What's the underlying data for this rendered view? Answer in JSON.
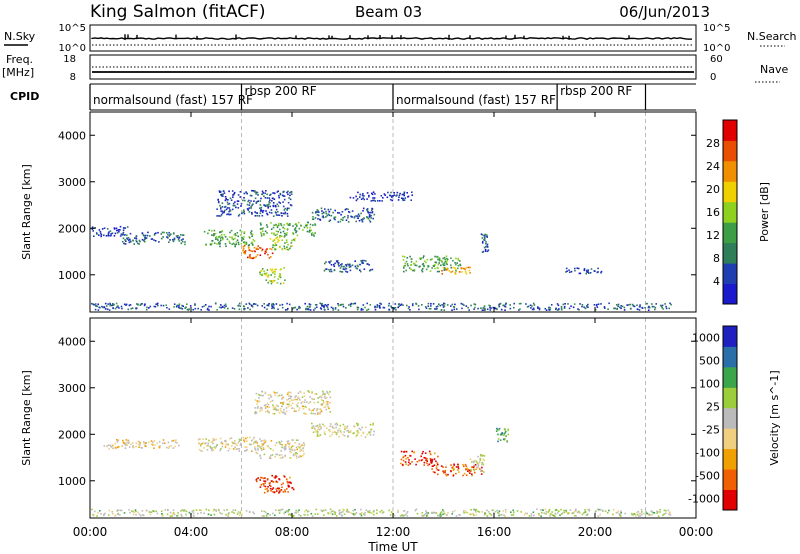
{
  "header": {
    "station": "King Salmon (fitACF)",
    "beam": "Beam 03",
    "date": "06/Jun/2013"
  },
  "colors": {
    "power_scale": [
      "#1a1acc",
      "#1f3fb0",
      "#2f7e5a",
      "#3d9e45",
      "#8fd11f",
      "#f0d000",
      "#f09000",
      "#e85000",
      "#e00000"
    ],
    "velocity_scale": [
      "#e00000",
      "#f06000",
      "#f0a000",
      "#f0d080",
      "#bbbbbb",
      "#9ccd3a",
      "#3aa54a",
      "#2b6fa8",
      "#2020c0"
    ],
    "ground_scatter": "#bbbbbb",
    "grid": "#bbbbbb"
  },
  "chart_data": [
    {
      "type": "line",
      "panel": "N.Sky / N.Search",
      "left_label": "N.Sky",
      "right_label": "N.Search",
      "left_ticks": [
        "10^5",
        "10^0"
      ],
      "right_ticks": [
        "10^5",
        "10^0"
      ]
    },
    {
      "type": "line",
      "panel": "Freq. / Nave",
      "left_label": "Freq.",
      "left_unit": "[MHz]",
      "right_label": "Nave",
      "left_ticks": [
        "18",
        "8"
      ],
      "right_ticks": [
        "60",
        "0"
      ]
    },
    {
      "type": "table",
      "panel": "CPID",
      "label": "CPID",
      "segments": [
        {
          "start_h": 0,
          "end_h": 6,
          "label": "normalsound (fast) 157 RF"
        },
        {
          "start_h": 6,
          "end_h": 12,
          "label": "rbsp 200 RF"
        },
        {
          "start_h": 12,
          "end_h": 18.5,
          "label": "normalsound (fast) 157 RF"
        },
        {
          "start_h": 18.5,
          "end_h": 22,
          "label": "rbsp 200 RF"
        }
      ]
    },
    {
      "type": "heatmap",
      "panel": "Power",
      "ylabel": "Slant Range [km]",
      "yticks": [
        "1000",
        "2000",
        "3000",
        "4000"
      ],
      "ylim": [
        200,
        4500
      ],
      "xlim": [
        0,
        24
      ],
      "colorbar_label": "Power [dB]",
      "colorbar_ticks": [
        "4",
        "8",
        "12",
        "16",
        "20",
        "24",
        "28"
      ],
      "scatter_regions": [
        {
          "x": 0.5,
          "y": 1950,
          "w": 2.0,
          "h": 220,
          "level": 0.15
        },
        {
          "x": 2.5,
          "y": 1800,
          "w": 2.5,
          "h": 260,
          "level": 0.2
        },
        {
          "x": 5.5,
          "y": 1800,
          "w": 2.0,
          "h": 350,
          "level": 0.4
        },
        {
          "x": 6.6,
          "y": 1500,
          "w": 1.2,
          "h": 280,
          "level": 0.8
        },
        {
          "x": 7.6,
          "y": 1700,
          "w": 1.0,
          "h": 300,
          "level": 0.5
        },
        {
          "x": 6.5,
          "y": 2550,
          "w": 3.0,
          "h": 550,
          "level": 0.15
        },
        {
          "x": 7.8,
          "y": 2000,
          "w": 2.2,
          "h": 300,
          "level": 0.4
        },
        {
          "x": 10.0,
          "y": 2300,
          "w": 2.5,
          "h": 300,
          "level": 0.2
        },
        {
          "x": 11.5,
          "y": 2700,
          "w": 2.5,
          "h": 200,
          "level": 0.1
        },
        {
          "x": 7.2,
          "y": 1000,
          "w": 1.0,
          "h": 350,
          "level": 0.5
        },
        {
          "x": 10.2,
          "y": 1200,
          "w": 2.0,
          "h": 250,
          "level": 0.2
        },
        {
          "x": 13.5,
          "y": 1250,
          "w": 2.3,
          "h": 350,
          "level": 0.4
        },
        {
          "x": 14.5,
          "y": 1100,
          "w": 1.2,
          "h": 150,
          "level": 0.7
        },
        {
          "x": 15.6,
          "y": 1700,
          "w": 0.3,
          "h": 400,
          "level": 0.2
        },
        {
          "x": 19.5,
          "y": 1100,
          "w": 1.5,
          "h": 120,
          "level": 0.15
        },
        {
          "x": 11.0,
          "y": 330,
          "w": 24.0,
          "h": 150,
          "level": 0.2
        }
      ]
    },
    {
      "type": "heatmap",
      "panel": "Velocity",
      "ylabel": "Slant Range [km]",
      "yticks": [
        "1000",
        "2000",
        "3000",
        "4000"
      ],
      "ylim": [
        200,
        4500
      ],
      "xlim": [
        0,
        24
      ],
      "xlabel": "Time UT",
      "xticks": [
        "00:00",
        "04:00",
        "08:00",
        "12:00",
        "16:00",
        "20:00",
        "00:00"
      ],
      "colorbar_label": "Velocity [m s^-1]",
      "colorbar_ticks": [
        "1000",
        "500",
        "100",
        "25",
        "-25",
        "-100",
        "-500",
        "-1000"
      ],
      "scatter_regions": [
        {
          "x": 2.0,
          "y": 1800,
          "w": 3.0,
          "h": 200,
          "level": 0.4
        },
        {
          "x": 5.5,
          "y": 1800,
          "w": 2.5,
          "h": 300,
          "level": 0.45
        },
        {
          "x": 7.5,
          "y": 1700,
          "w": 2.0,
          "h": 400,
          "level": 0.45
        },
        {
          "x": 10.0,
          "y": 2100,
          "w": 2.5,
          "h": 300,
          "level": 0.5
        },
        {
          "x": 8.0,
          "y": 2700,
          "w": 3.0,
          "h": 500,
          "level": 0.45
        },
        {
          "x": 7.3,
          "y": 950,
          "w": 1.5,
          "h": 400,
          "level": 0.1
        },
        {
          "x": 13.0,
          "y": 1500,
          "w": 1.5,
          "h": 300,
          "level": 0.12
        },
        {
          "x": 14.5,
          "y": 1250,
          "w": 2.0,
          "h": 250,
          "level": 0.15
        },
        {
          "x": 15.3,
          "y": 1400,
          "w": 0.6,
          "h": 400,
          "level": 0.5
        },
        {
          "x": 16.3,
          "y": 2000,
          "w": 0.5,
          "h": 300,
          "level": 0.7
        },
        {
          "x": 11.0,
          "y": 330,
          "w": 24.0,
          "h": 150,
          "level": 0.55
        }
      ]
    }
  ]
}
